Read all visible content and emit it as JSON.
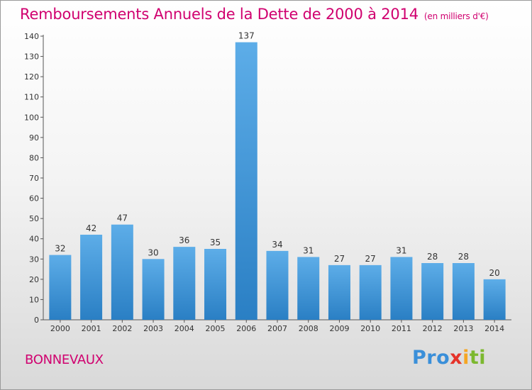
{
  "title": "Remboursements Annuels de la Dette de 2000 à 2014",
  "unit": "(en milliers d'€)",
  "place": "BONNEVAUX",
  "logo": {
    "parts": [
      "Pro",
      "x",
      "i",
      "ti"
    ]
  },
  "colors": {
    "accent": "#d0006f",
    "bar_top": "#5dade8",
    "bar_bottom": "#2a7fc4"
  },
  "chart_data": {
    "type": "bar",
    "categories": [
      "2000",
      "2001",
      "2002",
      "2003",
      "2004",
      "2005",
      "2006",
      "2007",
      "2008",
      "2009",
      "2010",
      "2011",
      "2012",
      "2013",
      "2014"
    ],
    "values": [
      32,
      42,
      47,
      30,
      36,
      35,
      137,
      34,
      31,
      27,
      27,
      31,
      28,
      28,
      20
    ],
    "ylim": [
      0,
      140
    ],
    "yticks": [
      0,
      10,
      20,
      30,
      40,
      50,
      60,
      70,
      80,
      90,
      100,
      110,
      120,
      130,
      140
    ],
    "grid": false,
    "data_labels": true
  }
}
